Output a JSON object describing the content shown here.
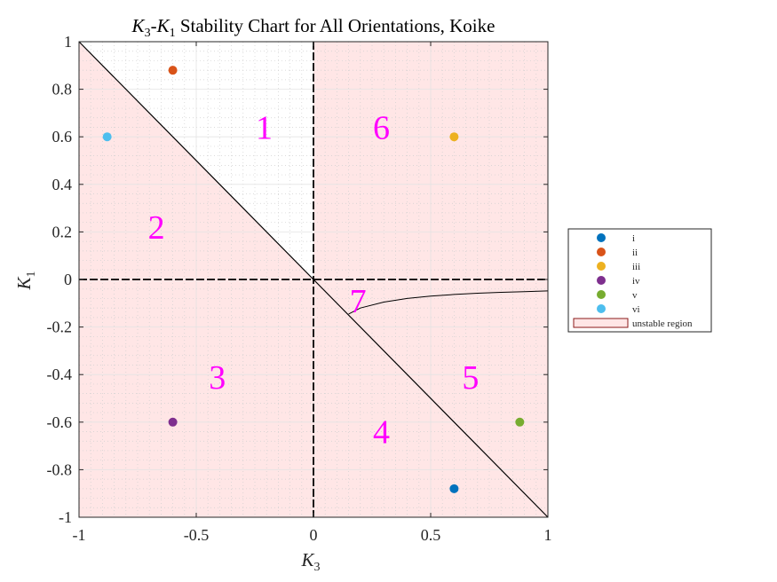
{
  "chart_data": {
    "type": "scatter",
    "title": {
      "prefix": "K",
      "prefix_sub": "3",
      "dash": "-",
      "mid": "K",
      "mid_sub": "1",
      "rest": " Stability Chart for All Orientations, Koike"
    },
    "xlabel": {
      "main": "K",
      "sub": "3"
    },
    "ylabel": {
      "main": "K",
      "sub": "1"
    },
    "xlim": [
      -1,
      1
    ],
    "ylim": [
      -1,
      1
    ],
    "xticks": [
      -1,
      -0.5,
      0,
      0.5,
      1
    ],
    "xtick_labels": [
      "-1",
      "-0.5",
      "0",
      "0.5",
      "1"
    ],
    "yticks": [
      -1,
      -0.8,
      -0.6,
      -0.4,
      -0.2,
      0,
      0.2,
      0.4,
      0.6,
      0.8,
      1
    ],
    "ytick_labels": [
      "-1",
      "-0.8",
      "-0.6",
      "-0.4",
      "-0.2",
      "0",
      "0.2",
      "0.4",
      "0.6",
      "0.8",
      "1"
    ],
    "grid": true,
    "minor_grid": true,
    "legend_position": "outside-right",
    "series": [
      {
        "name": "i",
        "x": [
          0.6
        ],
        "y": [
          -0.88
        ],
        "color": "#0072BD"
      },
      {
        "name": "ii",
        "x": [
          -0.6
        ],
        "y": [
          0.88
        ],
        "color": "#D95319"
      },
      {
        "name": "iii",
        "x": [
          0.6
        ],
        "y": [
          0.6
        ],
        "color": "#EDB120"
      },
      {
        "name": "iv",
        "x": [
          -0.6
        ],
        "y": [
          -0.6
        ],
        "color": "#7E2F8E"
      },
      {
        "name": "v",
        "x": [
          0.88
        ],
        "y": [
          -0.6
        ],
        "color": "#77AC30"
      },
      {
        "name": "vi",
        "x": [
          -0.88
        ],
        "y": [
          0.6
        ],
        "color": "#4DBEEE"
      }
    ],
    "unstable_region": {
      "name": "unstable region",
      "fill": "#ffe6e6",
      "edge": "#8b1a1a"
    },
    "boundaries": {
      "diagonal": [
        [
          -1,
          1
        ],
        [
          1,
          -1
        ]
      ],
      "curve": {
        "x": [
          0.15,
          0.2,
          0.3,
          0.4,
          0.5,
          0.6,
          0.7,
          0.8,
          0.9,
          1.0
        ],
        "y": [
          -0.145,
          -0.12,
          -0.095,
          -0.08,
          -0.07,
          -0.063,
          -0.058,
          -0.054,
          -0.051,
          -0.048
        ]
      }
    },
    "region_labels": [
      {
        "text": "1",
        "x": -0.21,
        "y": 0.64
      },
      {
        "text": "2",
        "x": -0.67,
        "y": 0.22
      },
      {
        "text": "3",
        "x": -0.41,
        "y": -0.41
      },
      {
        "text": "4",
        "x": 0.29,
        "y": -0.64
      },
      {
        "text": "5",
        "x": 0.67,
        "y": -0.41
      },
      {
        "text": "6",
        "x": 0.29,
        "y": 0.64
      },
      {
        "text": "7",
        "x": 0.19,
        "y": -0.09
      }
    ]
  }
}
